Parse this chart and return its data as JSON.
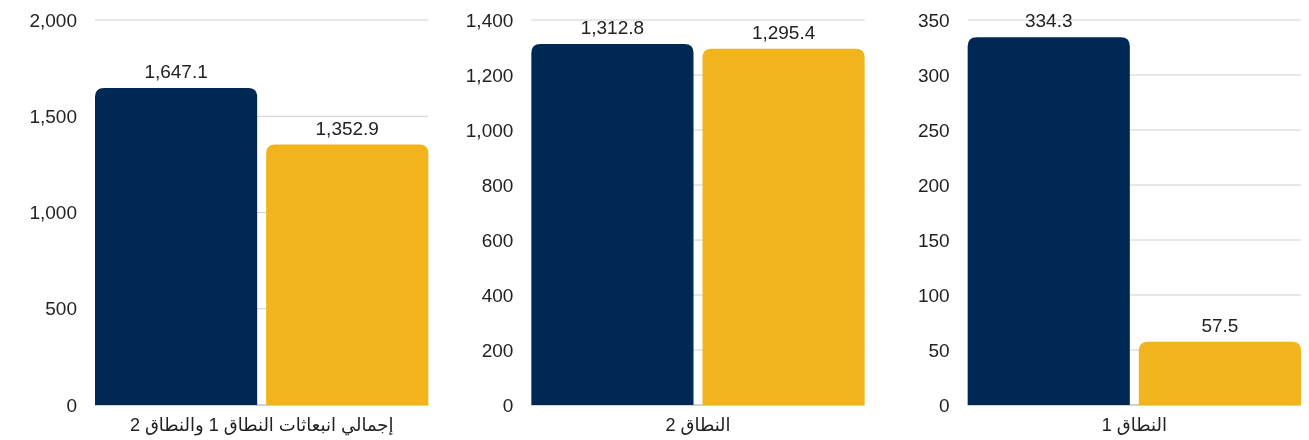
{
  "chart_data": [
    {
      "type": "bar",
      "categories": [
        null,
        null
      ],
      "xlabel": "إجمالي انبعاثات النطاق 1 والنطاق 2",
      "values": [
        1647.1,
        1352.9
      ],
      "colors": [
        "#002855",
        "#f2b41c"
      ],
      "value_labels": [
        "1,647.1",
        "1,352.9"
      ],
      "ylim": [
        0,
        2000
      ],
      "yticks": [
        0,
        {
          "value": 500,
          "label": "500"
        },
        {
          "value": 1000,
          "label": "1,000"
        },
        {
          "value": 1500,
          "label": "1,500"
        },
        {
          "value": 2000,
          "label": "2,000"
        }
      ],
      "grid": "y"
    },
    {
      "type": "bar",
      "categories": [
        null,
        null
      ],
      "xlabel": "النطاق 2",
      "values": [
        1312.8,
        1295.4
      ],
      "colors": [
        "#002855",
        "#f2b41c"
      ],
      "value_labels": [
        "1,312.8",
        "1,295.4"
      ],
      "ylim": [
        0,
        1400
      ],
      "yticks": [
        0,
        200,
        400,
        600,
        800,
        {
          "value": 1000,
          "label": "1,000"
        },
        {
          "value": 1200,
          "label": "1,200"
        },
        {
          "value": 1400,
          "label": "1,400"
        }
      ],
      "grid": "y"
    },
    {
      "type": "bar",
      "categories": [
        null,
        null
      ],
      "xlabel": "النطاق 1",
      "values": [
        334.3,
        57.5
      ],
      "colors": [
        "#002855",
        "#f2b41c"
      ],
      "value_labels": [
        "334.3",
        "57.5"
      ],
      "ylim": [
        0,
        350
      ],
      "yticks": [
        0,
        50,
        100,
        150,
        200,
        250,
        300,
        350
      ],
      "grid": "y"
    }
  ]
}
